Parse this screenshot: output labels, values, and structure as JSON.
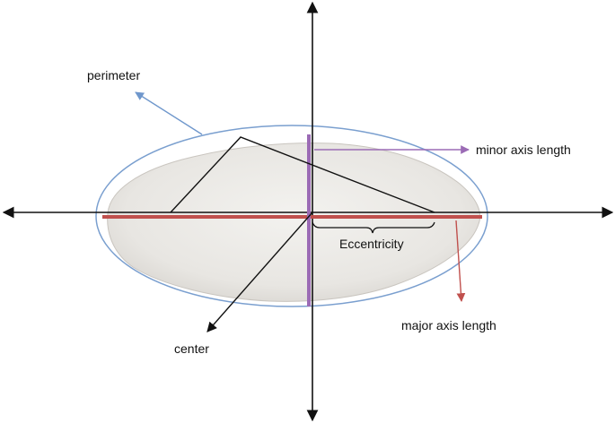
{
  "labels": {
    "perimeter": "perimeter",
    "minor_axis": "minor axis length",
    "major_axis": "major axis length",
    "eccentricity": "Eccentricity",
    "center": "center"
  },
  "colors": {
    "axis": "#111111",
    "perimeter": "#7a9fcf",
    "perimeter_arrow": "#6f97cc",
    "major_axis": "#c0504d",
    "minor_axis": "#9b6bb5",
    "grain_fill": "#e9e7e3",
    "triangle": "#111111"
  }
}
